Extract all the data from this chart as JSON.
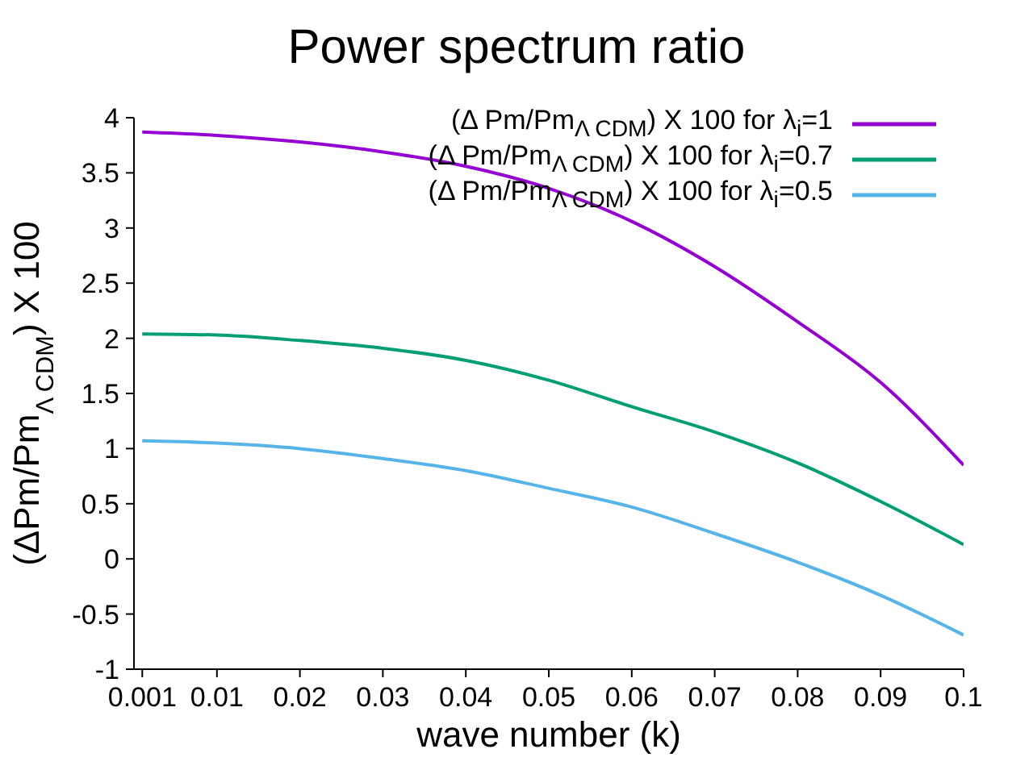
{
  "chart_data": {
    "type": "line",
    "title": "Power spectrum ratio",
    "xlabel": "wave number (k)",
    "ylabel": "(ΔPm/Pm$_{Λ CDM}$) X 100",
    "x": [
      0.001,
      0.01,
      0.02,
      0.03,
      0.04,
      0.05,
      0.06,
      0.07,
      0.08,
      0.09,
      0.1
    ],
    "series": [
      {
        "name": "(Δ Pm/Pm$_{Λ CDM}$) X 100 for  λ$_{i}$=1",
        "color": "#9400d3",
        "values": [
          3.87,
          3.84,
          3.78,
          3.69,
          3.56,
          3.36,
          3.06,
          2.65,
          2.15,
          1.6,
          0.85
        ]
      },
      {
        "name": "(Δ Pm/Pm$_{Λ CDM}$) X 100 for  λ$_{i}$=0.7",
        "color": "#009e73",
        "values": [
          2.04,
          2.03,
          1.98,
          1.91,
          1.8,
          1.62,
          1.38,
          1.15,
          0.87,
          0.52,
          0.13
        ]
      },
      {
        "name": "(Δ Pm/Pm$_{Λ CDM}$) X 100 for  λ$_{i}$=0.5",
        "color": "#56b4e9",
        "values": [
          1.07,
          1.05,
          1.0,
          0.91,
          0.8,
          0.64,
          0.47,
          0.23,
          -0.03,
          -0.33,
          -0.69
        ]
      }
    ],
    "xlim": [
      0,
      0.1
    ],
    "xticks": [
      0.001,
      0.01,
      0.02,
      0.03,
      0.04,
      0.05,
      0.06,
      0.07,
      0.08,
      0.09,
      0.1
    ],
    "ylim": [
      -1,
      4
    ],
    "yticks": [
      -1,
      -0.5,
      0,
      0.5,
      1,
      1.5,
      2,
      2.5,
      3,
      3.5,
      4
    ],
    "legend": "top right",
    "marker": "none",
    "line_style": "solid",
    "grid": false
  }
}
